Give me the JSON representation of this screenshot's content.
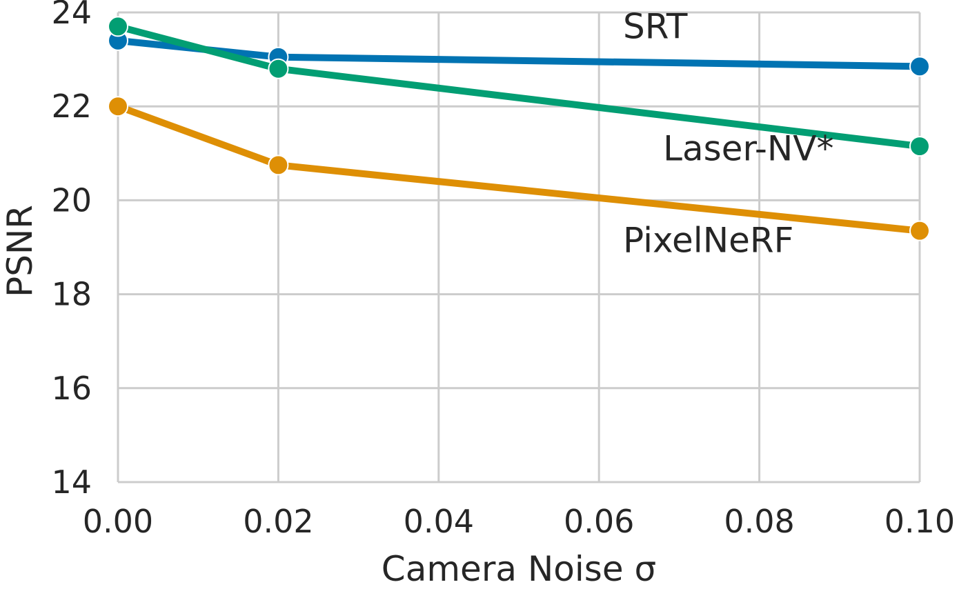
{
  "chart_data": {
    "type": "line",
    "title": "",
    "xlabel": "Camera Noise σ",
    "ylabel": "PSNR",
    "x": [
      0.0,
      0.02,
      0.1
    ],
    "xlim": [
      0.0,
      0.1
    ],
    "ylim": [
      14,
      24
    ],
    "xticks": [
      "0.00",
      "0.02",
      "0.04",
      "0.06",
      "0.08",
      "0.10"
    ],
    "yticks": [
      "14",
      "16",
      "18",
      "20",
      "22",
      "24"
    ],
    "grid": true,
    "legend": "inline labels",
    "series": [
      {
        "name": "SRT",
        "values": [
          23.4,
          23.05,
          22.85
        ],
        "color": "#0173b2"
      },
      {
        "name": "Laser-NV*",
        "values": [
          23.7,
          22.8,
          21.15
        ],
        "color": "#029e73"
      },
      {
        "name": "PixelNeRF",
        "values": [
          22.0,
          20.75,
          19.35
        ],
        "color": "#de8f05"
      }
    ]
  }
}
